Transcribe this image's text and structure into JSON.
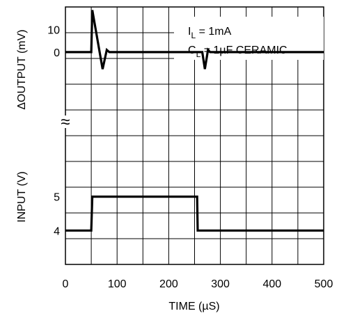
{
  "chart_data": {
    "type": "line",
    "x": {
      "label": "TIME (µS)",
      "range": [
        0,
        500
      ],
      "ticks": [
        0,
        100,
        200,
        300,
        400,
        500
      ],
      "grid_step": 50
    },
    "output_panel": {
      "ylabel": "ΔOUTPUT (mV)",
      "ticks": [
        0,
        10
      ],
      "ylim": [
        -37,
        20
      ],
      "series": {
        "points": [
          [
            0,
            0
          ],
          [
            50,
            0
          ],
          [
            52,
            18.6
          ],
          [
            72,
            -7.5
          ],
          [
            80,
            1
          ],
          [
            85,
            0
          ],
          [
            260,
            0
          ],
          [
            265,
            0
          ],
          [
            270,
            -7.5
          ],
          [
            276,
            1
          ],
          [
            280,
            0
          ],
          [
            500,
            0
          ]
        ]
      }
    },
    "input_panel": {
      "ylabel": "INPUT (V)",
      "ticks": [
        4,
        5
      ],
      "ylim": [
        3,
        6.8
      ],
      "series": {
        "points": [
          [
            0,
            4
          ],
          [
            50,
            4
          ],
          [
            52,
            5
          ],
          [
            255,
            5
          ],
          [
            256,
            4
          ],
          [
            500,
            4
          ]
        ]
      }
    },
    "break_mark": "≈",
    "annotations": {
      "line1_main": "I",
      "line1_sub": "L",
      "line1_rest": " = 1mA",
      "line2_main": "C",
      "line2_sub": "L",
      "line2_rest": " = 1µF CERAMIC"
    },
    "grid": true,
    "colors": {
      "line": "#000000",
      "grid": "#000000"
    }
  }
}
